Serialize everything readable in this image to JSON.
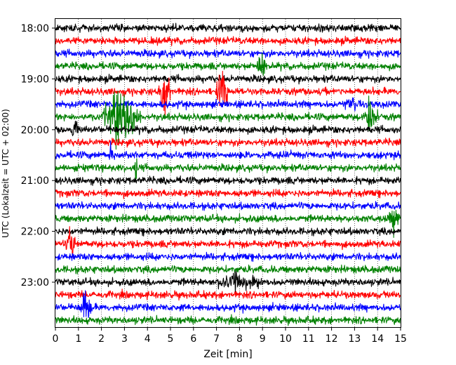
{
  "chart_data": {
    "type": "line",
    "xlabel": "Zeit  [min]",
    "ylabel": "UTC (Lokalzeit = UTC + 02:00)",
    "xlim": [
      0,
      15
    ],
    "x_ticks": [
      0,
      1,
      2,
      3,
      4,
      5,
      6,
      7,
      8,
      9,
      10,
      11,
      12,
      13,
      14,
      15
    ],
    "y_ticks": [
      "18:00",
      "19:00",
      "20:00",
      "21:00",
      "22:00",
      "23:00"
    ],
    "row_interval_minutes": 15,
    "first_row_time": "18:00",
    "last_row_time": "23:45",
    "trace_colors": [
      "#000000",
      "#ff0000",
      "#0000ff",
      "#008000"
    ],
    "grid": "vertical dotted",
    "events": [
      {
        "row": 3,
        "start_min": 8.7,
        "end_min": 9.2,
        "amplitude": 0.4
      },
      {
        "row": 5,
        "start_min": 4.5,
        "end_min": 5.0,
        "amplitude": 1.0
      },
      {
        "row": 5,
        "start_min": 7.0,
        "end_min": 7.5,
        "amplitude": 1.0
      },
      {
        "row": 6,
        "start_min": 12.6,
        "end_min": 13.1,
        "amplitude": 0.3
      },
      {
        "row": 7,
        "start_min": 2.0,
        "end_min": 3.7,
        "amplitude": 0.9
      },
      {
        "row": 7,
        "start_min": 13.4,
        "end_min": 14.0,
        "amplitude": 0.5
      },
      {
        "row": 8,
        "start_min": 0.7,
        "end_min": 1.0,
        "amplitude": 0.3
      },
      {
        "row": 10,
        "start_min": 2.3,
        "end_min": 2.5,
        "amplitude": 0.4
      },
      {
        "row": 11,
        "start_min": 3.4,
        "end_min": 3.6,
        "amplitude": 0.4
      },
      {
        "row": 15,
        "start_min": 14.5,
        "end_min": 15.0,
        "amplitude": 0.35
      },
      {
        "row": 17,
        "start_min": 0.4,
        "end_min": 0.9,
        "amplitude": 0.4
      },
      {
        "row": 20,
        "start_min": 6.8,
        "end_min": 9.0,
        "amplitude": 0.2
      },
      {
        "row": 22,
        "start_min": 1.1,
        "end_min": 1.6,
        "amplitude": 0.6
      }
    ]
  }
}
